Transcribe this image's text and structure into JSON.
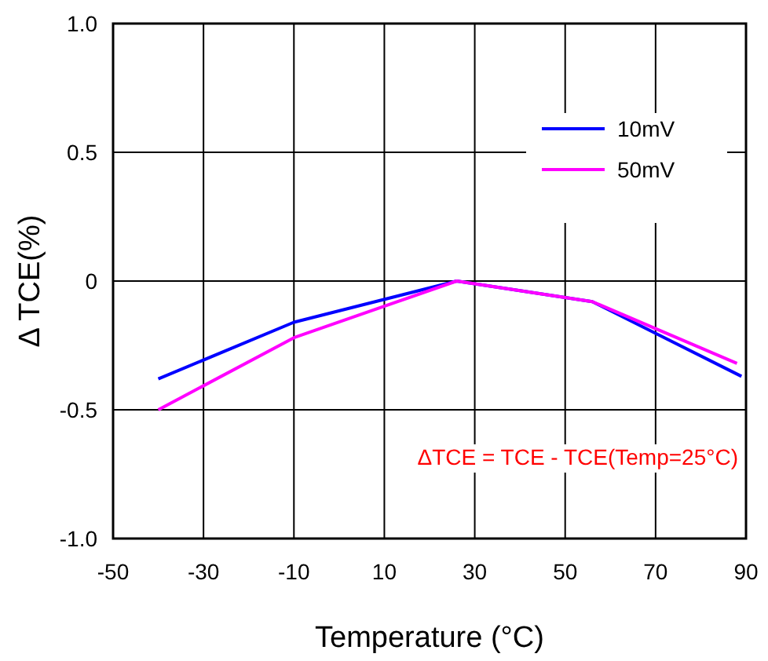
{
  "chart_data": {
    "type": "line",
    "xlabel": "Temperature (°C)",
    "ylabel": "Δ TCE(%)",
    "xlim": [
      -50,
      90
    ],
    "xticks": [
      -50,
      -30,
      -10,
      10,
      30,
      50,
      70,
      90
    ],
    "ylim": [
      -1,
      1
    ],
    "yticks": [
      {
        "value": -1,
        "label": "-1.0"
      },
      {
        "value": -0.5,
        "label": "-0.5"
      },
      0,
      {
        "value": 0.5,
        "label": "0.5"
      },
      {
        "value": 1,
        "label": "1.0"
      }
    ],
    "grid": true,
    "legend": "top right",
    "marker": "none",
    "line_style": "solid",
    "series": [
      {
        "name": "10mV",
        "color": "#0000ff",
        "x": [
          -40,
          -10,
          26,
          56,
          89
        ],
        "values": [
          -0.38,
          -0.16,
          0,
          -0.08,
          -0.37
        ]
      },
      {
        "name": "50mV",
        "color": "#ff00ff",
        "x": [
          -40,
          -10,
          26,
          56,
          88
        ],
        "values": [
          -0.5,
          -0.22,
          0,
          -0.08,
          -0.32
        ]
      }
    ],
    "annotations": [
      {
        "text": "ΔTCE = TCE - TCE(Temp=25°C)"
      }
    ]
  }
}
